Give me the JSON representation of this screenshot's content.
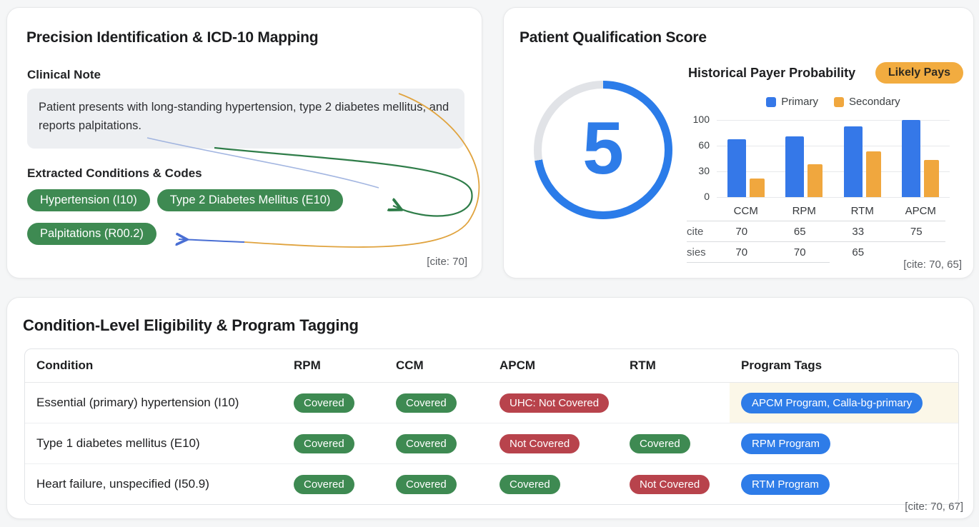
{
  "colors": {
    "blue": "#3578e8",
    "ring_blue": "#2b7ce9",
    "ring_gray": "#e1e3e7",
    "orange": "#f0a73e",
    "green": "#3e8a52",
    "red": "#b8434c",
    "badge_bg": "#f2ac40"
  },
  "card_icd": {
    "title": "Precision Identification & ICD-10 Mapping",
    "clinical_note_label": "Clinical Note",
    "note_text": "Patient presents with long-standing hypertension, type 2 diabetes mellitus, and reports palpitations.",
    "extracted_label": "Extracted Conditions & Codes",
    "conditions": [
      "Hypertension (I10)",
      "Type 2 Diabetes Mellitus (E10)",
      "Palpitations (R00.2)"
    ],
    "cite": "[cite: 70]"
  },
  "card_score": {
    "title": "Patient Qualification Score",
    "score": "5",
    "ring_pct": 72.5,
    "badge": "Likely Pays",
    "cite": "[cite: 70, 65]",
    "mini_table": {
      "rows": [
        {
          "label": "cite",
          "values": [
            "70",
            "65",
            "33",
            "75"
          ]
        },
        {
          "label": "sies",
          "values": [
            "70",
            "70",
            "65",
            ""
          ]
        }
      ]
    }
  },
  "chart_data": {
    "type": "bar",
    "title": "Historical Payer Probability",
    "categories": [
      "CCM",
      "RPM",
      "RTM",
      "APCM"
    ],
    "series": [
      {
        "name": "Primary",
        "color": "#3578e8",
        "values": [
          70,
          75,
          90,
          100
        ]
      },
      {
        "name": "Secondary",
        "color": "#f0a73e",
        "values": [
          22,
          38,
          53,
          43
        ]
      }
    ],
    "yticks": [
      0,
      30,
      60,
      100
    ],
    "ylim": [
      0,
      100
    ],
    "grid": true,
    "legend_position": "top"
  },
  "card_table": {
    "title": "Condition-Level Eligibility & Program Tagging",
    "columns": [
      "Condition",
      "RPM",
      "CCM",
      "APCM",
      "RTM",
      "Program Tags"
    ],
    "rows": [
      {
        "condition": "Essential (primary) hypertension (I10)",
        "statuses": [
          {
            "col": "RPM",
            "label": "Covered",
            "kind": "green"
          },
          {
            "col": "CCM",
            "label": "Covered",
            "kind": "green"
          },
          {
            "col": "APCM",
            "label": "UHC: Not Covered",
            "kind": "red"
          },
          {
            "col": "RTM",
            "label": "",
            "kind": "none"
          }
        ],
        "program_tags": "APCM Program, Calla-bg-primary",
        "tags_highlight": true
      },
      {
        "condition": "Type 1 diabetes mellitus (E10)",
        "statuses": [
          {
            "col": "RPM",
            "label": "Covered",
            "kind": "green"
          },
          {
            "col": "CCM",
            "label": "Covered",
            "kind": "green"
          },
          {
            "col": "APCM",
            "label": "Not Covered",
            "kind": "red"
          },
          {
            "col": "RTM",
            "label": "Covered",
            "kind": "green"
          }
        ],
        "program_tags": "RPM Program",
        "tags_highlight": false
      },
      {
        "condition": "Heart failure, unspecified (I50.9)",
        "statuses": [
          {
            "col": "RPM",
            "label": "Covered",
            "kind": "green"
          },
          {
            "col": "CCM",
            "label": "Covered",
            "kind": "green"
          },
          {
            "col": "APCM",
            "label": "Covered",
            "kind": "green"
          },
          {
            "col": "RTM",
            "label": "Not Covered",
            "kind": "red"
          }
        ],
        "program_tags": "RTM Program",
        "tags_highlight": false
      }
    ],
    "cite": "[cite: 70, 67]"
  }
}
